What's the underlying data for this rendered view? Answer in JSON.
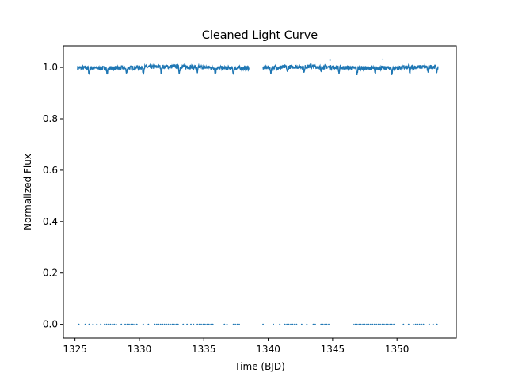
{
  "chart_data": {
    "type": "scatter",
    "title": "Cleaned Light Curve",
    "xlabel": "Time (BJD)",
    "ylabel": "Normalized Flux",
    "xlim": [
      1324.1,
      1354.6
    ],
    "ylim": [
      -0.0535,
      1.0835
    ],
    "xticks": [
      1325,
      1330,
      1335,
      1340,
      1345,
      1350
    ],
    "xtick_labels": [
      "1325",
      "1330",
      "1335",
      "1340",
      "1345",
      "1350"
    ],
    "yticks": [
      0.0,
      0.2,
      0.4,
      0.6,
      0.8,
      1.0
    ],
    "ytick_labels": [
      "0.0",
      "0.2",
      "0.4",
      "0.6",
      "0.8",
      "1.0"
    ],
    "grid": false,
    "color": "#1f77b4",
    "segments": [
      {
        "x_start": 1325.2,
        "x_end": 1338.5
      },
      {
        "x_start": 1339.6,
        "x_end": 1353.2
      }
    ],
    "flux_baseline": 1.0,
    "flux_scatter": 0.008,
    "dip_depth": 0.025,
    "dip_times": [
      1326.1,
      1327.5,
      1329.0,
      1330.3,
      1331.7,
      1333.1,
      1334.5,
      1335.9,
      1337.3,
      1340.2,
      1341.5,
      1342.8,
      1344.1,
      1345.5,
      1346.9,
      1348.3,
      1349.6,
      1351.0,
      1352.4,
      1353.1
    ],
    "outliers_high": [
      {
        "x": 1344.8,
        "y": 1.028
      },
      {
        "x": 1348.9,
        "y": 1.032
      }
    ],
    "zero_points": [
      1325.3,
      1325.8,
      1326.1,
      1326.4,
      1326.7,
      1327.0,
      1327.3,
      1327.45,
      1327.6,
      1327.75,
      1327.9,
      1328.05,
      1328.2,
      1328.6,
      1328.9,
      1329.05,
      1329.2,
      1329.35,
      1329.5,
      1329.65,
      1329.8,
      1330.3,
      1330.7,
      1331.2,
      1331.35,
      1331.5,
      1331.65,
      1331.8,
      1331.95,
      1332.1,
      1332.25,
      1332.4,
      1332.55,
      1332.7,
      1332.85,
      1333.0,
      1333.4,
      1333.7,
      1334.0,
      1334.2,
      1334.5,
      1334.65,
      1334.8,
      1334.95,
      1335.1,
      1335.25,
      1335.4,
      1335.55,
      1335.7,
      1336.6,
      1336.8,
      1337.3,
      1337.45,
      1337.6,
      1337.75,
      1339.6,
      1340.4,
      1340.9,
      1341.3,
      1341.45,
      1341.6,
      1341.75,
      1341.9,
      1342.05,
      1342.2,
      1342.6,
      1343.0,
      1343.5,
      1343.65,
      1344.1,
      1344.25,
      1344.4,
      1344.55,
      1344.7,
      1346.6,
      1346.75,
      1346.9,
      1347.05,
      1347.2,
      1347.35,
      1347.5,
      1347.65,
      1347.8,
      1347.95,
      1348.1,
      1348.25,
      1348.4,
      1348.55,
      1348.7,
      1348.85,
      1349.0,
      1349.15,
      1349.3,
      1349.45,
      1349.6,
      1349.75,
      1350.5,
      1350.9,
      1351.3,
      1351.45,
      1351.6,
      1351.75,
      1351.9,
      1352.05,
      1352.5,
      1352.8,
      1353.1
    ]
  }
}
